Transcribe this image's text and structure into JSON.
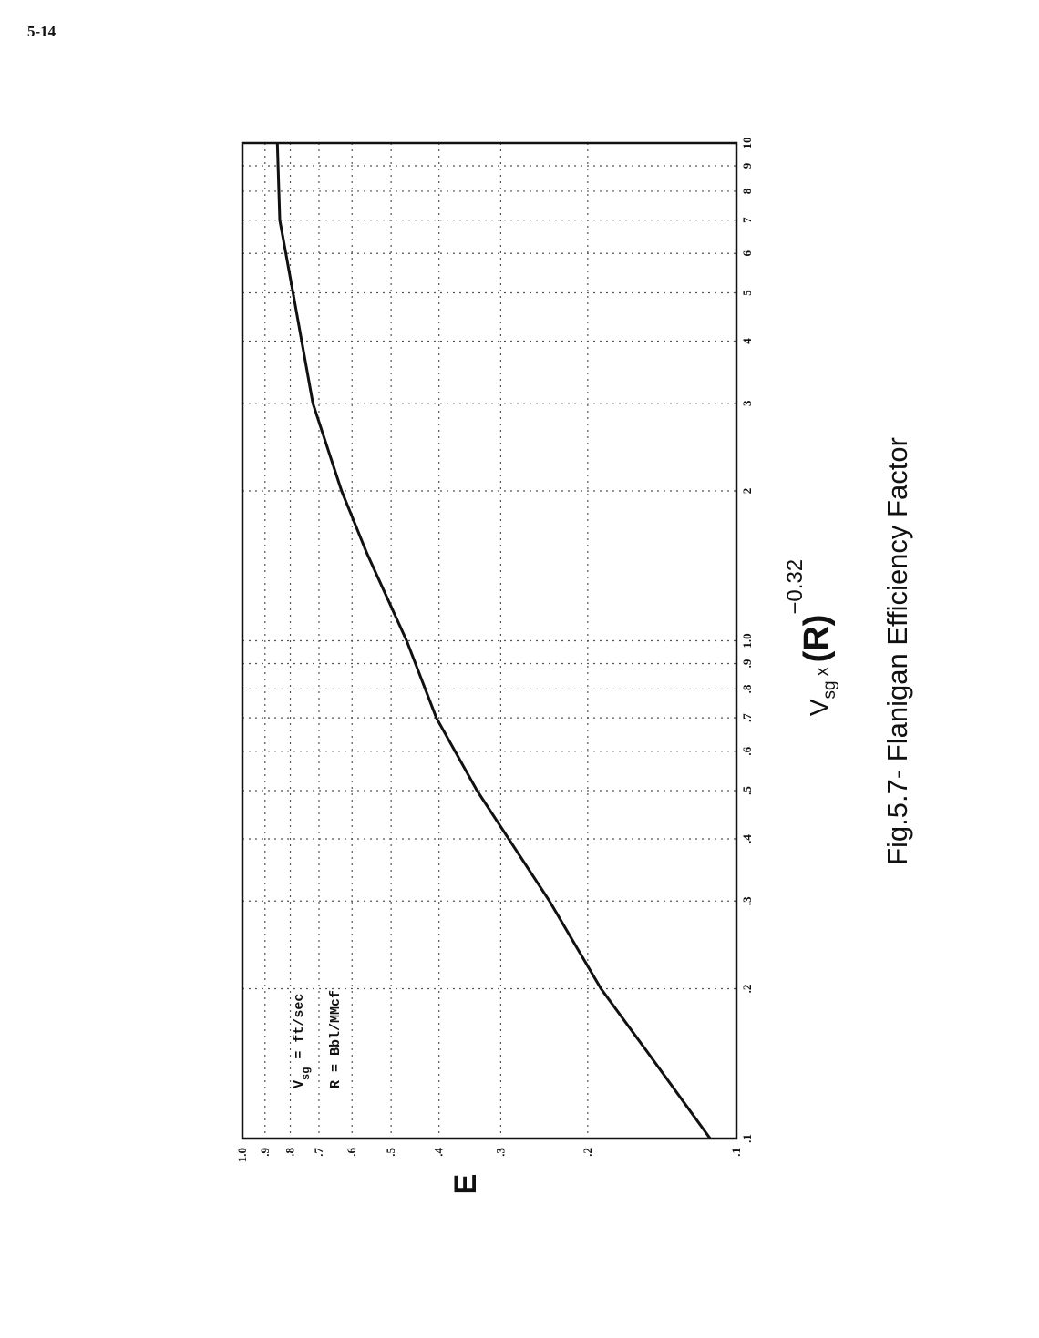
{
  "page_number": "5-14",
  "chart_data": {
    "type": "line",
    "title": "Fig.5.7- Flanigan Efficiency Factor",
    "ylabel": "E",
    "xlabel_parts": [
      "V",
      "sg",
      " x ",
      "(R)",
      "−0.32"
    ],
    "annotation_lines": [
      [
        "V",
        "sg",
        " = ft/sec"
      ],
      "R = Bbl/MMcf"
    ],
    "x": [
      0.1,
      0.15,
      0.2,
      0.3,
      0.5,
      0.7,
      1,
      1.5,
      2,
      3,
      5,
      7,
      10
    ],
    "values": [
      0.113,
      0.152,
      0.188,
      0.239,
      0.335,
      0.405,
      0.465,
      0.56,
      0.63,
      0.72,
      0.79,
      0.84,
      0.85
    ],
    "color": "#111111",
    "xscale": "log",
    "yscale": "log",
    "grid": true,
    "xlim": [
      0.1,
      10
    ],
    "ylim": [
      0.1,
      1
    ],
    "xticks": [
      {
        "value": 0.1,
        "label": ".1"
      },
      {
        "value": 0.2,
        "label": ".2"
      },
      {
        "value": 0.3,
        "label": ".3"
      },
      {
        "value": 0.4,
        "label": ".4"
      },
      {
        "value": 0.5,
        "label": ".5"
      },
      {
        "value": 0.6,
        "label": ".6"
      },
      {
        "value": 0.7,
        "label": ".7"
      },
      {
        "value": 0.8,
        "label": ".8"
      },
      {
        "value": 0.9,
        "label": ".9"
      },
      {
        "value": 1,
        "label": "1.0"
      },
      2,
      3,
      4,
      5,
      6,
      7,
      8,
      9,
      10
    ],
    "yticks": [
      {
        "value": 0.1,
        "label": ".1"
      },
      {
        "value": 0.2,
        "label": ".2"
      },
      {
        "value": 0.3,
        "label": ".3"
      },
      {
        "value": 0.4,
        "label": ".4"
      },
      {
        "value": 0.5,
        "label": ".5"
      },
      {
        "value": 0.6,
        "label": ".6"
      },
      {
        "value": 0.7,
        "label": ".7"
      },
      {
        "value": 0.8,
        "label": ".8"
      },
      {
        "value": 0.9,
        "label": ".9"
      },
      {
        "value": 1,
        "label": "1.0"
      }
    ]
  }
}
